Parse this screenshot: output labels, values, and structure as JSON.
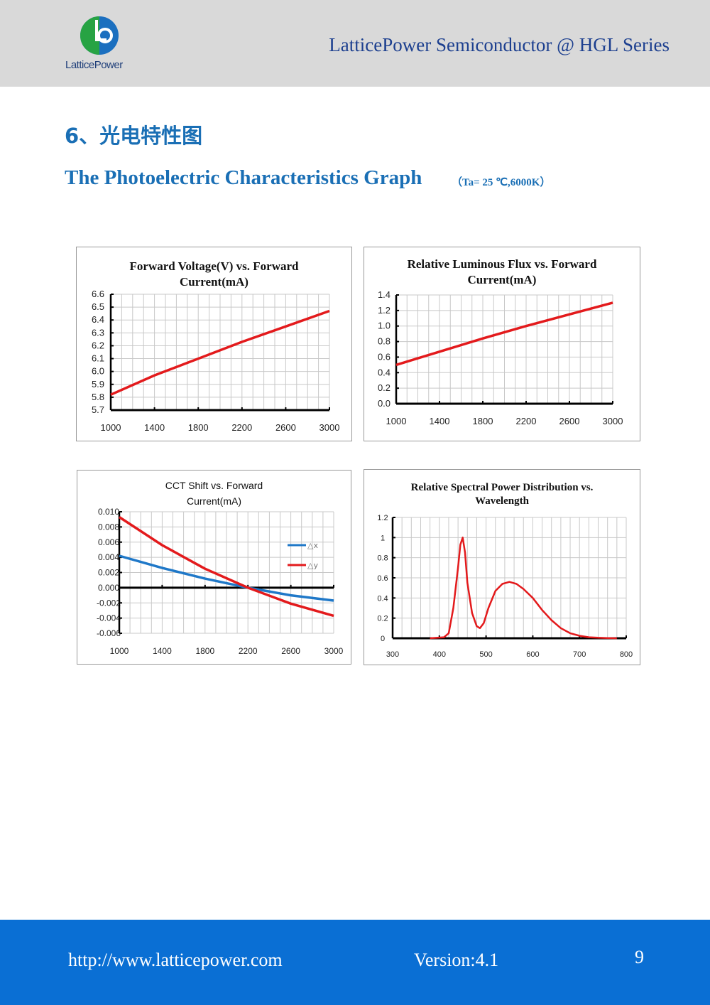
{
  "header": {
    "logo_text": "LatticePower",
    "title": "LatticePower Semiconductor @ HGL Series"
  },
  "section": {
    "title_cn": "6、光电特性图",
    "title_en": "The Photoelectric Characteristics Graph",
    "conditions": "（Ta= 25  ℃,6000K）"
  },
  "colors": {
    "red": "#e31a1c",
    "blue": "#1f78c8",
    "accent": "#1a6fb5",
    "footer": "#0a6fd4"
  },
  "chart_data": [
    {
      "type": "line",
      "title": "Forward  Voltage(V) vs. Forward Current(mA)",
      "x": [
        1000,
        1400,
        1800,
        2200,
        2600,
        3000
      ],
      "series": [
        {
          "name": "Vf",
          "color": "#e31a1c",
          "values": [
            5.82,
            5.97,
            6.1,
            6.23,
            6.35,
            6.47
          ]
        }
      ],
      "xlim": [
        1000,
        3000
      ],
      "ylim": [
        5.7,
        6.6
      ],
      "xticks": [
        "1000",
        "1400",
        "1800",
        "2200",
        "2600",
        "3000"
      ],
      "yticks": [
        "5.7",
        "5.8",
        "5.9",
        "6.0",
        "6.1",
        "6.2",
        "6.3",
        "6.4",
        "6.5",
        "6.6"
      ],
      "grid": true
    },
    {
      "type": "line",
      "title": "Relative Luminous Flux vs. Forward Current(mA)",
      "x": [
        1000,
        1400,
        1800,
        2200,
        2600,
        3000
      ],
      "series": [
        {
          "name": "Flux",
          "color": "#e31a1c",
          "values": [
            0.5,
            0.67,
            0.84,
            1.0,
            1.15,
            1.3
          ]
        }
      ],
      "xlim": [
        1000,
        3000
      ],
      "ylim": [
        0,
        1.4
      ],
      "xticks": [
        "1000",
        "1400",
        "1800",
        "2200",
        "2600",
        "3000"
      ],
      "yticks": [
        "0.0",
        "0.2",
        "0.4",
        "0.6",
        "0.8",
        "1.0",
        "1.2",
        "1.4"
      ],
      "grid": true
    },
    {
      "type": "line",
      "title": "CCT Shift vs. Forward Current(mA)",
      "x": [
        1000,
        1400,
        1800,
        2200,
        2600,
        3000
      ],
      "series": [
        {
          "name": "△x",
          "color": "#1f78c8",
          "values": [
            0.0042,
            0.0026,
            0.0012,
            0,
            -0.001,
            -0.0017
          ]
        },
        {
          "name": "△y",
          "color": "#e31a1c",
          "values": [
            0.0093,
            0.0056,
            0.0025,
            0,
            -0.0021,
            -0.0037
          ]
        }
      ],
      "xlim": [
        1000,
        3000
      ],
      "ylim": [
        -0.006,
        0.01
      ],
      "xticks": [
        "1000",
        "1400",
        "1800",
        "2200",
        "2600",
        "3000"
      ],
      "yticks": [
        "-0.006",
        "-0.004",
        "-0.002",
        "0.000",
        "0.002",
        "0.004",
        "0.006",
        "0.008",
        "0.010"
      ],
      "grid": true,
      "legend": "right"
    },
    {
      "type": "line",
      "title": "Relative Spectral Power Distribution vs. Wavelength",
      "x": [
        380,
        410,
        420,
        430,
        440,
        445,
        450,
        455,
        460,
        470,
        480,
        487,
        495,
        505,
        520,
        535,
        550,
        565,
        580,
        600,
        620,
        640,
        660,
        680,
        700,
        720,
        740,
        760,
        780
      ],
      "series": [
        {
          "name": "SPD",
          "color": "#e31a1c",
          "values": [
            0,
            0.01,
            0.05,
            0.3,
            0.7,
            0.93,
            1.0,
            0.85,
            0.55,
            0.25,
            0.12,
            0.1,
            0.15,
            0.3,
            0.47,
            0.54,
            0.56,
            0.54,
            0.49,
            0.4,
            0.28,
            0.18,
            0.1,
            0.05,
            0.025,
            0.01,
            0.005,
            0.002,
            0
          ]
        }
      ],
      "xlim": [
        300,
        800
      ],
      "ylim": [
        0,
        1.2
      ],
      "xticks": [
        "300",
        "400",
        "500",
        "600",
        "700",
        "800"
      ],
      "yticks": [
        "0",
        "0.2",
        "0.4",
        "0.6",
        "0.8",
        "1",
        "1.2"
      ],
      "grid": true
    }
  ],
  "footer": {
    "url": "http://www.latticepower.com",
    "version": "Version:4.1",
    "page": "9"
  }
}
